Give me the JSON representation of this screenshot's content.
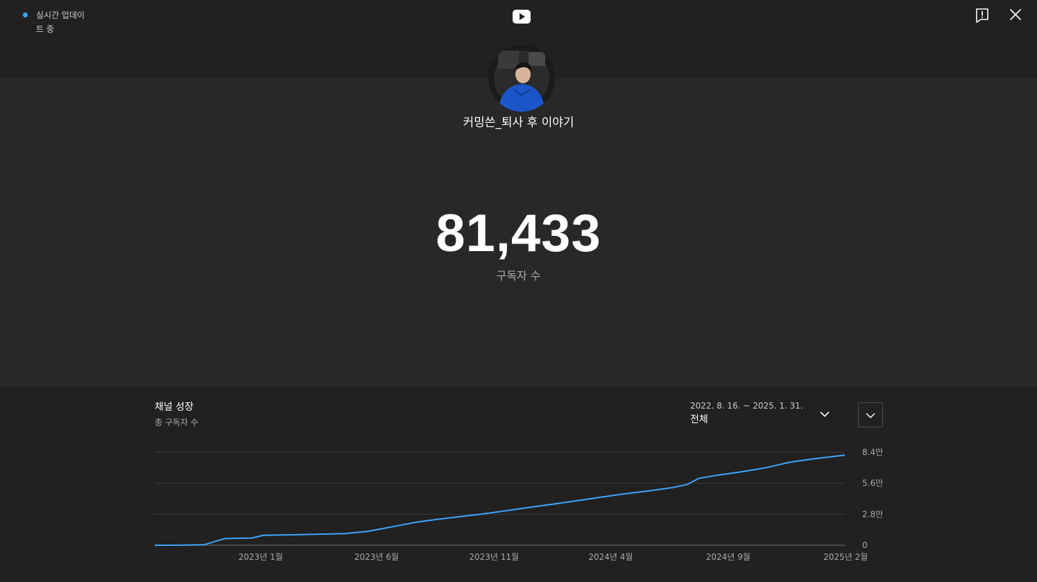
{
  "header": {
    "live_status": "실시간 업데이트 중",
    "logo_icon": "youtube-logo-icon",
    "report_icon": "feedback-icon",
    "close_icon": "close-icon"
  },
  "channel": {
    "name": "커밍쓴_퇴사 후 이야기",
    "subscriber_count": "81,433",
    "subscriber_label": "구독자 수"
  },
  "growth": {
    "title": "채널 성장",
    "subtitle": "총 구독자 수",
    "range_dates": "2022. 8. 16. ~ 2025. 1. 31.",
    "range_value": "전체"
  },
  "colors": {
    "accent": "#3ea6ff",
    "line": "#3ea6ff",
    "background": "#282828",
    "panel": "#212121"
  },
  "chart_data": {
    "type": "line",
    "x": [
      "2022-08-16",
      "2022-09-10",
      "2022-10-20",
      "2022-11-15",
      "2022-12-20",
      "2023-01-05",
      "2023-02-20",
      "2023-04-20",
      "2023-05-20",
      "2023-06-20",
      "2023-07-20",
      "2023-08-20",
      "2023-09-20",
      "2023-10-20",
      "2023-11-20",
      "2023-12-20",
      "2024-01-20",
      "2024-02-20",
      "2024-03-20",
      "2024-04-20",
      "2024-05-20",
      "2024-06-20",
      "2024-07-10",
      "2024-07-25",
      "2024-08-20",
      "2024-09-20",
      "2024-10-20",
      "2024-11-20",
      "2024-12-20",
      "2025-01-31"
    ],
    "values": [
      0,
      0,
      500,
      6000,
      6500,
      9000,
      9500,
      10500,
      12500,
      16500,
      20500,
      23500,
      26000,
      28500,
      31500,
      34500,
      37500,
      40500,
      43500,
      46500,
      49000,
      52000,
      55000,
      60500,
      63500,
      66500,
      70000,
      75000,
      78000,
      81433
    ],
    "y_ticks": [
      "0",
      "2.8만",
      "5.6만",
      "8.4만"
    ],
    "y_tick_values": [
      0,
      28000,
      56000,
      84000
    ],
    "x_ticks": [
      "2023년 1월",
      "2023년 6월",
      "2023년 11월",
      "2024년 4월",
      "2024년 9월",
      "2025년 2월"
    ],
    "x_tick_dates": [
      "2023-01-01",
      "2023-06-01",
      "2023-11-01",
      "2024-04-01",
      "2024-09-01",
      "2025-02-01"
    ],
    "ylim": [
      0,
      84000
    ],
    "grid": true,
    "title": "채널 성장",
    "ylabel": "",
    "xlabel": ""
  }
}
